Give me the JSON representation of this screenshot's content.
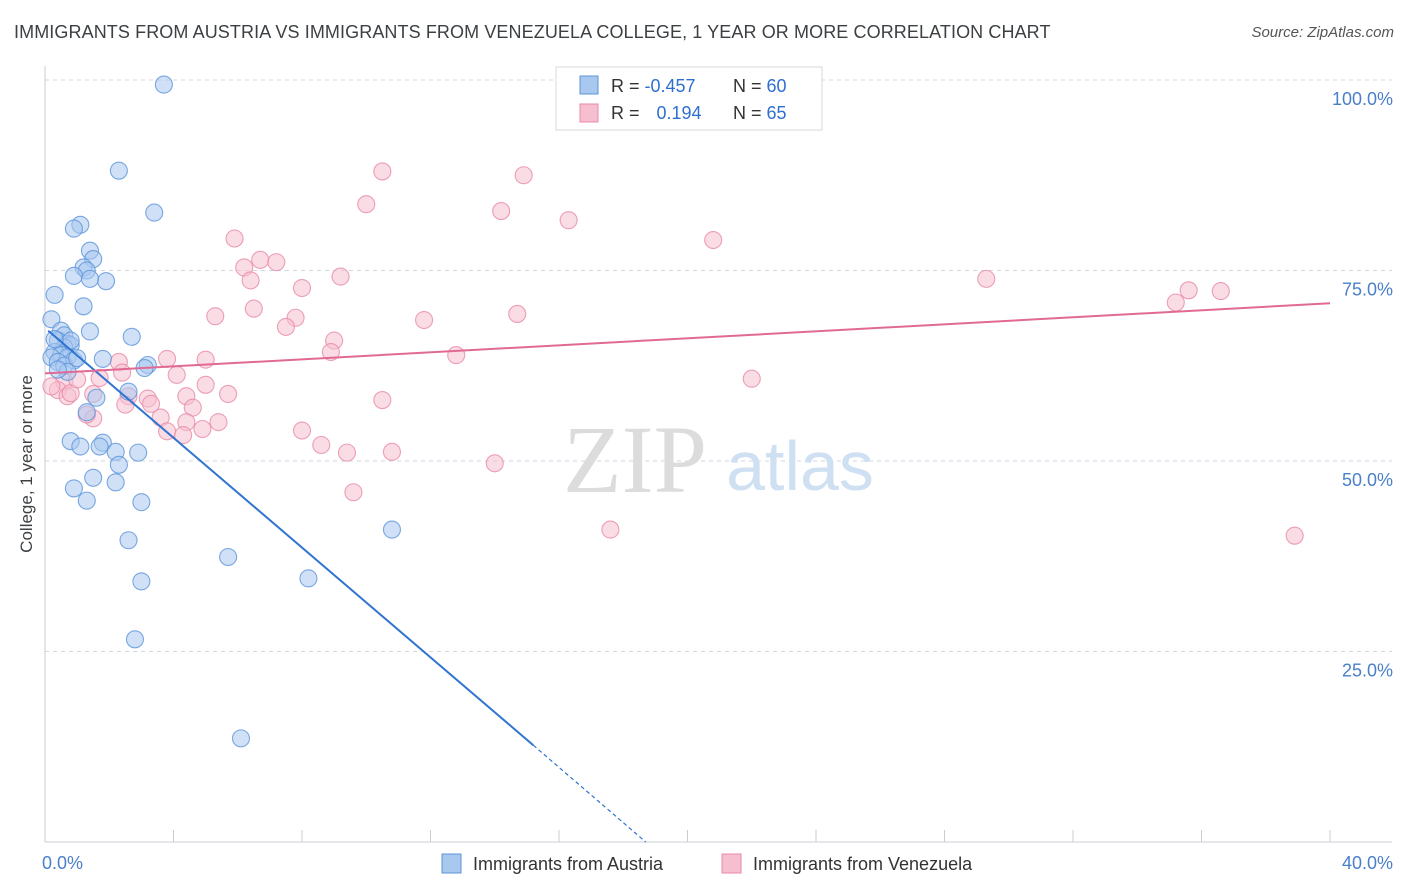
{
  "title": "IMMIGRANTS FROM AUSTRIA VS IMMIGRANTS FROM VENEZUELA COLLEGE, 1 YEAR OR MORE CORRELATION CHART",
  "source": "Source: ZipAtlas.com",
  "watermark": {
    "zip": "ZIP",
    "atlas": "atlas"
  },
  "colors": {
    "austria_fill": "#a9c8f0",
    "austria_stroke": "#5b93d8",
    "austria_line": "#2f74d0",
    "venezuela_fill": "#f6bfd0",
    "venezuela_stroke": "#e889a8",
    "venezuela_line": "#e06a93",
    "axis_label": "#4a7fc9",
    "grid": "#cfd6e0"
  },
  "legend": {
    "rows": [
      {
        "r_label": "R = ",
        "r_value": "-0.457",
        "n_label": "N = ",
        "n_value": "60"
      },
      {
        "r_label": "R = ",
        "r_value": "0.194",
        "n_label": "N = ",
        "n_value": "65"
      }
    ]
  },
  "chart_data": {
    "type": "scatter",
    "xlabel": "",
    "ylabel": "College, 1 year or more",
    "xlim": [
      0,
      40
    ],
    "ylim": [
      0,
      100
    ],
    "x_tick_labels": [
      "0.0%",
      "40.0%"
    ],
    "y_ticks": [
      25,
      50,
      75,
      100
    ],
    "y_tick_labels": [
      "25.0%",
      "50.0%",
      "75.0%",
      "100.0%"
    ],
    "grid": true,
    "series": [
      {
        "name": "Immigrants from Austria",
        "trend": {
          "x": [
            0.1,
            15.2
          ],
          "y": [
            67.1,
            12.7
          ]
        },
        "trend_dashed": {
          "x": [
            15.2,
            18.7
          ],
          "y": [
            12.7,
            0.0
          ]
        },
        "points": [
          [
            3.7,
            99.4
          ],
          [
            2.3,
            88.1
          ],
          [
            3.4,
            82.6
          ],
          [
            1.1,
            81.0
          ],
          [
            0.9,
            80.5
          ],
          [
            1.4,
            77.6
          ],
          [
            1.5,
            76.5
          ],
          [
            1.2,
            75.4
          ],
          [
            1.3,
            75.0
          ],
          [
            0.9,
            74.3
          ],
          [
            1.9,
            73.6
          ],
          [
            1.4,
            73.9
          ],
          [
            0.3,
            71.8
          ],
          [
            1.2,
            70.3
          ],
          [
            0.2,
            68.6
          ],
          [
            1.4,
            67.0
          ],
          [
            0.5,
            67.1
          ],
          [
            2.7,
            66.3
          ],
          [
            0.6,
            66.5
          ],
          [
            0.4,
            65.8
          ],
          [
            0.7,
            65.4
          ],
          [
            0.8,
            65.2
          ],
          [
            0.6,
            64.9
          ],
          [
            0.3,
            64.3
          ],
          [
            0.5,
            63.9
          ],
          [
            0.7,
            63.6
          ],
          [
            0.9,
            63.2
          ],
          [
            0.2,
            63.6
          ],
          [
            0.4,
            63.0
          ],
          [
            1.8,
            63.4
          ],
          [
            0.6,
            62.5
          ],
          [
            3.2,
            62.6
          ],
          [
            3.1,
            62.2
          ],
          [
            0.7,
            61.7
          ],
          [
            2.6,
            59.1
          ],
          [
            1.6,
            58.3
          ],
          [
            1.3,
            56.4
          ],
          [
            0.8,
            52.6
          ],
          [
            1.8,
            52.4
          ],
          [
            1.1,
            51.9
          ],
          [
            1.7,
            51.9
          ],
          [
            2.2,
            51.2
          ],
          [
            2.9,
            51.1
          ],
          [
            2.3,
            49.5
          ],
          [
            1.5,
            47.8
          ],
          [
            2.2,
            47.2
          ],
          [
            0.9,
            46.4
          ],
          [
            1.3,
            44.8
          ],
          [
            3.0,
            44.6
          ],
          [
            10.8,
            41.0
          ],
          [
            2.6,
            39.6
          ],
          [
            5.7,
            37.4
          ],
          [
            8.2,
            34.6
          ],
          [
            3.0,
            34.2
          ],
          [
            2.8,
            26.6
          ],
          [
            6.1,
            13.6
          ],
          [
            0.4,
            62.0
          ],
          [
            0.8,
            65.8
          ],
          [
            0.3,
            66.0
          ],
          [
            1.0,
            63.5
          ]
        ]
      },
      {
        "name": "Immigrants from Venezuela",
        "trend": {
          "x": [
            0.0,
            40.0
          ],
          "y": [
            61.5,
            70.7
          ]
        },
        "points": [
          [
            10.5,
            88.0
          ],
          [
            14.9,
            87.5
          ],
          [
            10.0,
            83.7
          ],
          [
            14.2,
            82.8
          ],
          [
            16.3,
            81.6
          ],
          [
            20.8,
            79.0
          ],
          [
            5.9,
            79.2
          ],
          [
            6.7,
            76.4
          ],
          [
            7.2,
            76.1
          ],
          [
            6.2,
            75.4
          ],
          [
            6.4,
            73.7
          ],
          [
            9.2,
            74.2
          ],
          [
            8.0,
            72.7
          ],
          [
            29.3,
            73.9
          ],
          [
            35.6,
            72.4
          ],
          [
            36.6,
            72.3
          ],
          [
            35.2,
            70.8
          ],
          [
            6.5,
            70.0
          ],
          [
            5.3,
            69.0
          ],
          [
            7.8,
            68.8
          ],
          [
            14.7,
            69.3
          ],
          [
            11.8,
            68.5
          ],
          [
            7.5,
            67.6
          ],
          [
            9.0,
            65.8
          ],
          [
            8.9,
            64.3
          ],
          [
            12.8,
            63.9
          ],
          [
            5.0,
            63.3
          ],
          [
            2.3,
            63.0
          ],
          [
            3.8,
            63.4
          ],
          [
            4.1,
            61.3
          ],
          [
            2.4,
            61.6
          ],
          [
            1.7,
            60.9
          ],
          [
            0.6,
            60.4
          ],
          [
            0.4,
            59.3
          ],
          [
            0.2,
            59.8
          ],
          [
            0.7,
            58.5
          ],
          [
            0.8,
            58.9
          ],
          [
            1.5,
            58.8
          ],
          [
            2.6,
            58.5
          ],
          [
            3.2,
            58.2
          ],
          [
            5.0,
            60.0
          ],
          [
            5.7,
            58.8
          ],
          [
            3.3,
            57.5
          ],
          [
            4.4,
            58.5
          ],
          [
            4.6,
            57.0
          ],
          [
            3.6,
            55.7
          ],
          [
            1.5,
            55.6
          ],
          [
            1.3,
            56.1
          ],
          [
            2.5,
            57.4
          ],
          [
            3.8,
            53.9
          ],
          [
            4.4,
            55.1
          ],
          [
            5.4,
            55.1
          ],
          [
            4.9,
            54.2
          ],
          [
            4.3,
            53.4
          ],
          [
            8.0,
            54.0
          ],
          [
            8.6,
            52.1
          ],
          [
            9.4,
            51.1
          ],
          [
            10.8,
            51.2
          ],
          [
            14.0,
            49.7
          ],
          [
            10.5,
            58.0
          ],
          [
            22.0,
            60.8
          ],
          [
            9.6,
            45.9
          ],
          [
            17.6,
            41.0
          ],
          [
            38.9,
            40.2
          ],
          [
            1.0,
            60.7
          ]
        ]
      }
    ]
  }
}
